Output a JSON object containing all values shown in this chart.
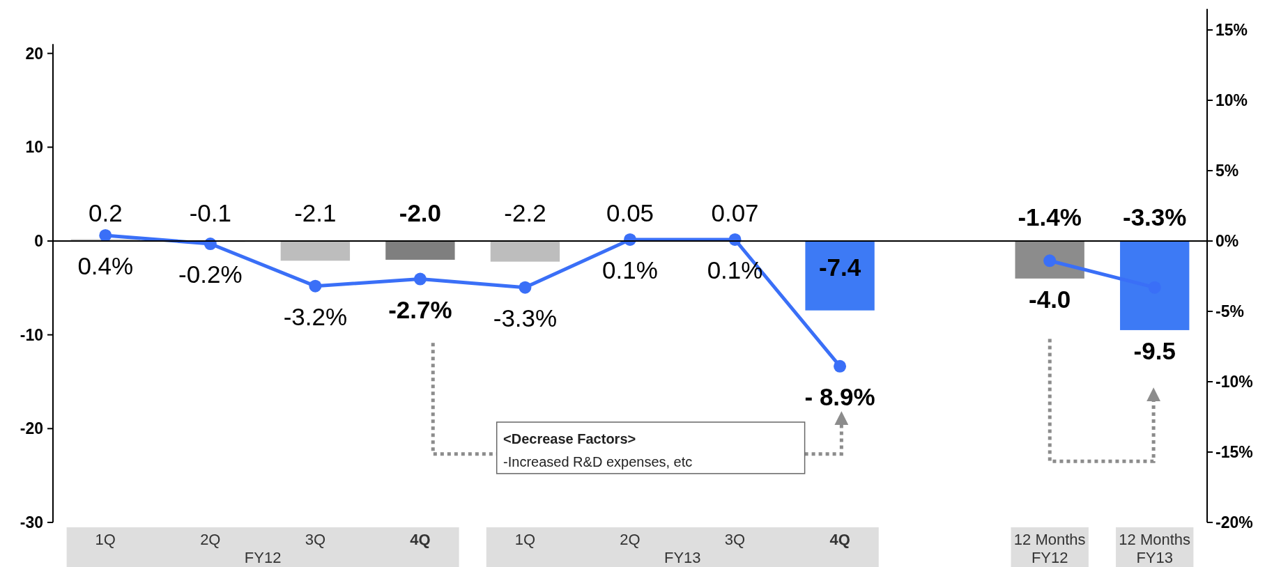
{
  "chart_data": {
    "type": "bar",
    "categories": [
      "1Q",
      "2Q",
      "3Q",
      "4Q",
      "1Q",
      "2Q",
      "3Q",
      "4Q",
      null,
      "12 Months\nFY12",
      "12 Months\nFY13"
    ],
    "series": [
      {
        "colors": [
          "#c8c8c8",
          "#c8c8c8",
          "#bdbdbd",
          "#7f7f7f",
          "#bdbdbd",
          "#c8c8c8",
          "#c8c8c8",
          "#3d7af5",
          null,
          "#8c8c8c",
          "#3d7af5"
        ],
        "values": [
          0.2,
          -0.1,
          -2.1,
          -2.0,
          -2.2,
          0.05,
          0.07,
          -7.4,
          null,
          -4.0,
          -9.5
        ],
        "value_labels": [
          "0.2",
          "-0.1",
          "-2.1",
          "-2.0",
          "-2.2",
          "0.05",
          "0.07",
          "-7.4",
          null,
          "-4.0",
          "-9.5"
        ]
      },
      {
        "type": "line",
        "axis": "y2",
        "color": "#3a6ff7",
        "values": [
          0.4,
          -0.2,
          -3.2,
          -2.7,
          -3.3,
          0.1,
          0.1,
          -8.9,
          null,
          -1.4,
          -3.3
        ],
        "value_labels": [
          "0.4%",
          "-0.2%",
          "-3.2%",
          "-2.7%",
          "-3.3%",
          "0.1%",
          "0.1%",
          "- 8.9%",
          null,
          "-1.4%",
          "-3.3%"
        ]
      }
    ],
    "ylim": [
      -30,
      21
    ],
    "yticks": [
      -30,
      -20,
      -10,
      0,
      10,
      20
    ],
    "y2lim": [
      -20,
      16.5
    ],
    "y2ticks": [
      {
        "value": -20,
        "label": "-20%"
      },
      {
        "value": -15,
        "label": "-15%"
      },
      {
        "value": -10,
        "label": "-10%"
      },
      {
        "value": -5,
        "label": "-5%"
      },
      {
        "value": 0,
        "label": "0%"
      },
      {
        "value": 5,
        "label": "5%"
      },
      {
        "value": 10,
        "label": "10%"
      },
      {
        "value": 15,
        "label": "15%"
      }
    ],
    "marker": "circle",
    "ref_lines": [
      {
        "axis": "y",
        "value": 0,
        "color": "#000000"
      }
    ],
    "annotations": [
      "FY12",
      "FY13",
      "<Decrease Factors>",
      "-Increased R&D expenses, etc"
    ]
  }
}
